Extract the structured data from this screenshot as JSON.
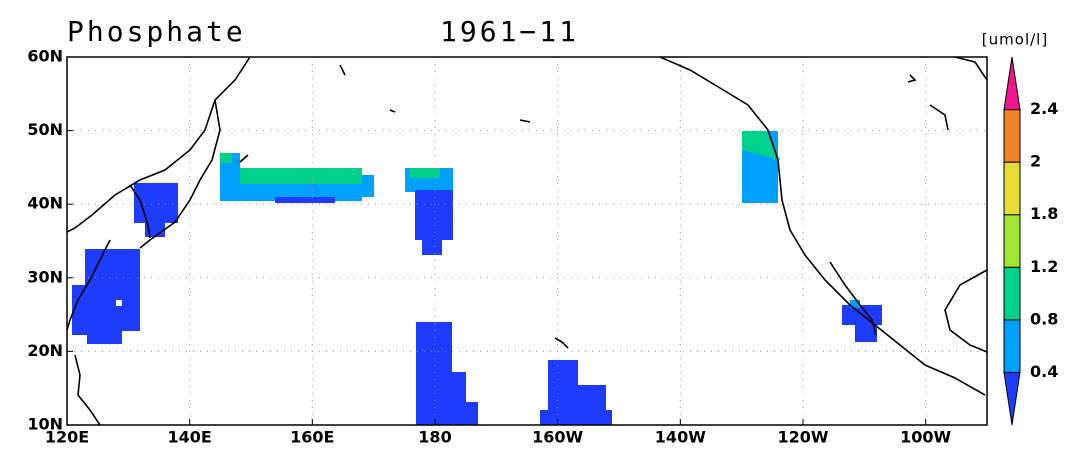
{
  "title": "Phosphate",
  "date": "1961−11",
  "units": "[umol/l]",
  "map": {
    "lat_lim": [
      10,
      60
    ],
    "lon_lim": [
      120,
      270
    ],
    "lat_ticks": [
      {
        "value": 60,
        "label": "60N"
      },
      {
        "value": 50,
        "label": "50N"
      },
      {
        "value": 40,
        "label": "40N"
      },
      {
        "value": 30,
        "label": "30N"
      },
      {
        "value": 20,
        "label": "20N"
      },
      {
        "value": 10,
        "label": "10N"
      }
    ],
    "lon_ticks": [
      {
        "value": 120,
        "label": "120E"
      },
      {
        "value": 140,
        "label": "140E"
      },
      {
        "value": 160,
        "label": "160E"
      },
      {
        "value": 180,
        "label": "180"
      },
      {
        "value": 200,
        "label": "160W"
      },
      {
        "value": 220,
        "label": "140W"
      },
      {
        "value": 240,
        "label": "120W"
      },
      {
        "value": 260,
        "label": "100W"
      }
    ],
    "grid": true
  },
  "colorbar": {
    "levels": [
      0.4,
      0.8,
      1.2,
      1.8,
      2,
      2.4
    ],
    "colors": [
      "#1e3cff",
      "#00a0ff",
      "#00d28c",
      "#a0e632",
      "#e6dc32",
      "#f08228",
      "#f0148c"
    ]
  }
}
